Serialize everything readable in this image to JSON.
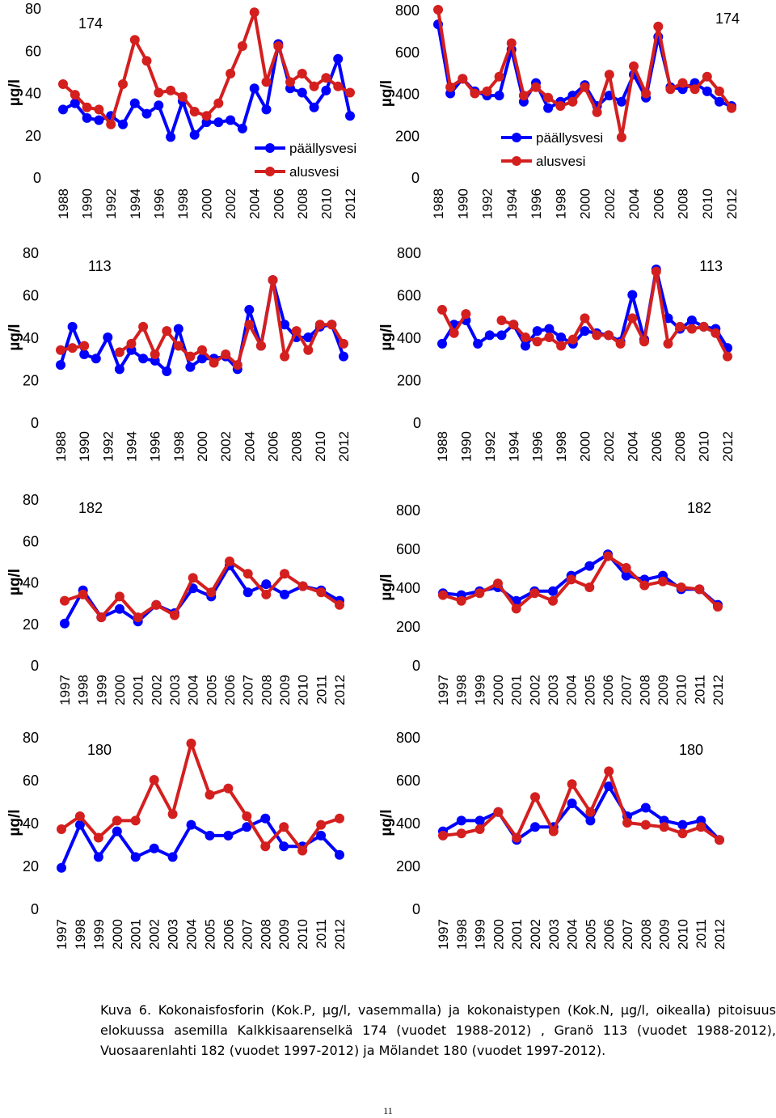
{
  "chart_data": [
    {
      "type": "line",
      "station": "174",
      "measure": "P",
      "x": [
        1988,
        1989,
        1990,
        1991,
        1992,
        1993,
        1994,
        1995,
        1996,
        1997,
        1998,
        1999,
        2000,
        2001,
        2002,
        2003,
        2004,
        2005,
        2006,
        2007,
        2008,
        2009,
        2010,
        2011,
        2012
      ],
      "tick_labels": [
        "1988",
        "1990",
        "1992",
        "1994",
        "1996",
        "1998",
        "2000",
        "2002",
        "2004",
        "2006",
        "2008",
        "2010",
        "2012"
      ],
      "ylabel": "µg/l",
      "ylim": [
        0,
        80
      ],
      "yticks": [
        "0",
        "20",
        "40",
        "60",
        "80"
      ],
      "legend": true,
      "series": [
        {
          "name": "päällysvesi",
          "color": "#0000ff",
          "values": [
            32,
            35,
            28,
            27,
            29,
            25,
            35,
            30,
            34,
            19,
            36,
            20,
            26,
            26,
            27,
            23,
            42,
            32,
            63,
            42,
            40,
            33,
            41,
            56,
            29
          ]
        },
        {
          "name": "alusvesi",
          "color": "#d41f1f",
          "values": [
            44,
            39,
            33,
            32,
            25,
            44,
            65,
            55,
            40,
            41,
            38,
            31,
            29,
            35,
            49,
            62,
            78,
            45,
            62,
            45,
            49,
            43,
            47,
            43,
            40
          ]
        }
      ]
    },
    {
      "type": "line",
      "station": "174",
      "measure": "N",
      "x": [
        1988,
        1989,
        1990,
        1991,
        1992,
        1993,
        1994,
        1995,
        1996,
        1997,
        1998,
        1999,
        2000,
        2001,
        2002,
        2003,
        2004,
        2005,
        2006,
        2007,
        2008,
        2009,
        2010,
        2011,
        2012
      ],
      "tick_labels": [
        "1988",
        "1990",
        "1992",
        "1994",
        "1996",
        "1998",
        "2000",
        "2002",
        "2004",
        "2006",
        "2008",
        "2010",
        "2012"
      ],
      "ylabel": "µg/l",
      "ylim": [
        0,
        800
      ],
      "yticks": [
        "0",
        "200",
        "400",
        "600",
        "800"
      ],
      "legend": true,
      "series": [
        {
          "name": "päällysvesi",
          "color": "#0000ff",
          "values": [
            730,
            400,
            470,
            410,
            390,
            390,
            610,
            360,
            450,
            330,
            360,
            390,
            440,
            340,
            390,
            360,
            490,
            380,
            670,
            430,
            420,
            450,
            410,
            360,
            340
          ]
        },
        {
          "name": "alusvesi",
          "color": "#d41f1f",
          "values": [
            800,
            430,
            470,
            400,
            410,
            480,
            640,
            390,
            430,
            380,
            340,
            360,
            430,
            310,
            490,
            190,
            530,
            400,
            720,
            420,
            450,
            420,
            480,
            410,
            330
          ]
        }
      ]
    },
    {
      "type": "line",
      "station": "113",
      "measure": "P",
      "x": [
        1988,
        1989,
        1990,
        1991,
        1992,
        1993,
        1994,
        1995,
        1996,
        1997,
        1998,
        1999,
        2000,
        2001,
        2002,
        2003,
        2004,
        2005,
        2006,
        2007,
        2008,
        2009,
        2010,
        2011,
        2012
      ],
      "tick_labels": [
        "1988",
        "1990",
        "1992",
        "1994",
        "1996",
        "1998",
        "2000",
        "2002",
        "2004",
        "2006",
        "2008",
        "2010",
        "2012"
      ],
      "ylabel": "µg/l",
      "ylim": [
        0,
        80
      ],
      "yticks": [
        "0",
        "20",
        "40",
        "60",
        "80"
      ],
      "legend": false,
      "series": [
        {
          "name": "päällysvesi",
          "color": "#0000ff",
          "values": [
            27,
            45,
            32,
            30,
            40,
            25,
            34,
            30,
            29,
            24,
            44,
            26,
            30,
            30,
            31,
            25,
            53,
            36,
            67,
            46,
            40,
            40,
            45,
            46,
            31
          ]
        },
        {
          "name": "alusvesi",
          "color": "#d41f1f",
          "values": [
            34,
            35,
            36,
            null,
            null,
            33,
            37,
            45,
            32,
            43,
            36,
            31,
            34,
            28,
            32,
            27,
            46,
            36,
            67,
            31,
            43,
            34,
            46,
            46,
            37
          ]
        }
      ]
    },
    {
      "type": "line",
      "station": "113",
      "measure": "N",
      "x": [
        1988,
        1989,
        1990,
        1991,
        1992,
        1993,
        1994,
        1995,
        1996,
        1997,
        1998,
        1999,
        2000,
        2001,
        2002,
        2003,
        2004,
        2005,
        2006,
        2007,
        2008,
        2009,
        2010,
        2011,
        2012
      ],
      "tick_labels": [
        "1988",
        "1990",
        "1992",
        "1994",
        "1996",
        "1998",
        "2000",
        "2002",
        "2004",
        "2006",
        "2008",
        "2010",
        "2012"
      ],
      "ylabel": "µg/l",
      "ylim": [
        0,
        800
      ],
      "yticks": [
        "0",
        "200",
        "400",
        "600",
        "800"
      ],
      "legend": false,
      "series": [
        {
          "name": "päällysvesi",
          "color": "#0000ff",
          "values": [
            370,
            460,
            480,
            370,
            410,
            410,
            460,
            360,
            430,
            440,
            400,
            370,
            430,
            420,
            410,
            380,
            600,
            390,
            720,
            490,
            440,
            480,
            450,
            440,
            350
          ]
        },
        {
          "name": "alusvesi",
          "color": "#d41f1f",
          "values": [
            530,
            420,
            510,
            null,
            null,
            480,
            460,
            400,
            380,
            400,
            360,
            390,
            490,
            410,
            410,
            370,
            490,
            380,
            710,
            370,
            450,
            440,
            450,
            420,
            310
          ]
        }
      ]
    },
    {
      "type": "line",
      "station": "182",
      "measure": "P",
      "x": [
        1997,
        1998,
        1999,
        2000,
        2001,
        2002,
        2003,
        2004,
        2005,
        2006,
        2007,
        2008,
        2009,
        2010,
        2011,
        2012
      ],
      "tick_labels": [
        "1997",
        "1998",
        "1999",
        "2000",
        "2001",
        "2002",
        "2003",
        "2004",
        "2005",
        "2006",
        "2007",
        "2008",
        "2009",
        "2010",
        "2011",
        "2012"
      ],
      "ylabel": "µg/l",
      "ylim": [
        0,
        80
      ],
      "yticks": [
        "0",
        "20",
        "40",
        "60",
        "80"
      ],
      "legend": false,
      "series": [
        {
          "name": "päällysvesi",
          "color": "#0000ff",
          "values": [
            20,
            36,
            23,
            27,
            21,
            29,
            25,
            37,
            33,
            48,
            35,
            39,
            34,
            38,
            36,
            31
          ]
        },
        {
          "name": "alusvesi",
          "color": "#d41f1f",
          "values": [
            31,
            34,
            23,
            33,
            23,
            29,
            24,
            42,
            35,
            50,
            44,
            34,
            44,
            38,
            35,
            29
          ]
        }
      ]
    },
    {
      "type": "line",
      "station": "182",
      "measure": "N",
      "x": [
        1997,
        1998,
        1999,
        2000,
        2001,
        2002,
        2003,
        2004,
        2005,
        2006,
        2007,
        2008,
        2009,
        2010,
        2011,
        2012
      ],
      "tick_labels": [
        "1997",
        "1998",
        "1999",
        "2000",
        "2001",
        "2002",
        "2003",
        "2004",
        "2005",
        "2006",
        "2007",
        "2008",
        "2009",
        "2010",
        "2011",
        "2012"
      ],
      "ylabel": "µg/l",
      "ylim": [
        0,
        800
      ],
      "yticks": [
        "0",
        "200",
        "400",
        "600",
        "800"
      ],
      "legend": false,
      "series": [
        {
          "name": "päällysvesi",
          "color": "#0000ff",
          "values": [
            370,
            360,
            380,
            400,
            330,
            380,
            380,
            460,
            510,
            570,
            460,
            440,
            460,
            390,
            390,
            310
          ]
        },
        {
          "name": "alusvesi",
          "color": "#d41f1f",
          "values": [
            360,
            330,
            370,
            420,
            290,
            370,
            330,
            440,
            400,
            560,
            500,
            410,
            430,
            400,
            390,
            300
          ]
        }
      ]
    },
    {
      "type": "line",
      "station": "180",
      "measure": "P",
      "x": [
        1997,
        1998,
        1999,
        2000,
        2001,
        2002,
        2003,
        2004,
        2005,
        2006,
        2007,
        2008,
        2009,
        2010,
        2011,
        2012
      ],
      "tick_labels": [
        "1997",
        "1998",
        "1999",
        "2000",
        "2001",
        "2002",
        "2003",
        "2004",
        "2005",
        "2006",
        "2007",
        "2008",
        "2009",
        "2010",
        "2011",
        "2012"
      ],
      "ylabel": "µg/l",
      "ylim": [
        0,
        80
      ],
      "yticks": [
        "0",
        "20",
        "40",
        "60",
        "80"
      ],
      "legend": false,
      "series": [
        {
          "name": "päällysvesi",
          "color": "#0000ff",
          "values": [
            19,
            39,
            24,
            36,
            24,
            28,
            24,
            39,
            34,
            34,
            38,
            42,
            29,
            29,
            34,
            25
          ]
        },
        {
          "name": "alusvesi",
          "color": "#d41f1f",
          "values": [
            37,
            43,
            33,
            41,
            41,
            60,
            44,
            77,
            53,
            56,
            43,
            29,
            38,
            27,
            39,
            42
          ]
        }
      ]
    },
    {
      "type": "line",
      "station": "180",
      "measure": "N",
      "x": [
        1997,
        1998,
        1999,
        2000,
        2001,
        2002,
        2003,
        2004,
        2005,
        2006,
        2007,
        2008,
        2009,
        2010,
        2011,
        2012
      ],
      "tick_labels": [
        "1997",
        "1998",
        "1999",
        "2000",
        "2001",
        "2002",
        "2003",
        "2004",
        "2005",
        "2006",
        "2007",
        "2008",
        "2009",
        "2010",
        "2011",
        "2012"
      ],
      "ylabel": "µg/l",
      "ylim": [
        0,
        800
      ],
      "yticks": [
        "0",
        "200",
        "400",
        "600",
        "800"
      ],
      "legend": false,
      "series": [
        {
          "name": "päällysvesi",
          "color": "#0000ff",
          "values": [
            360,
            410,
            410,
            450,
            320,
            380,
            380,
            490,
            410,
            570,
            430,
            470,
            410,
            390,
            410,
            320
          ]
        },
        {
          "name": "alusvesi",
          "color": "#d41f1f",
          "values": [
            340,
            350,
            370,
            450,
            330,
            520,
            360,
            580,
            450,
            640,
            400,
            390,
            380,
            350,
            380,
            320
          ]
        }
      ]
    }
  ],
  "caption": "Kuva 6. Kokonaisfosforin (Kok.P, µg/l, vasemmalla) ja kokonaistypen (Kok.N, µg/l, oikealla) pitoisuus elokuussa asemilla Kalkkisaarenselkä 174 (vuodet 1988-2012) , Granö 113 (vuodet 1988-2012), Vuosaarenlahti 182 (vuodet 1997-2012) ja Mölandet 180 (vuodet 1997-2012).",
  "page_number": "11"
}
